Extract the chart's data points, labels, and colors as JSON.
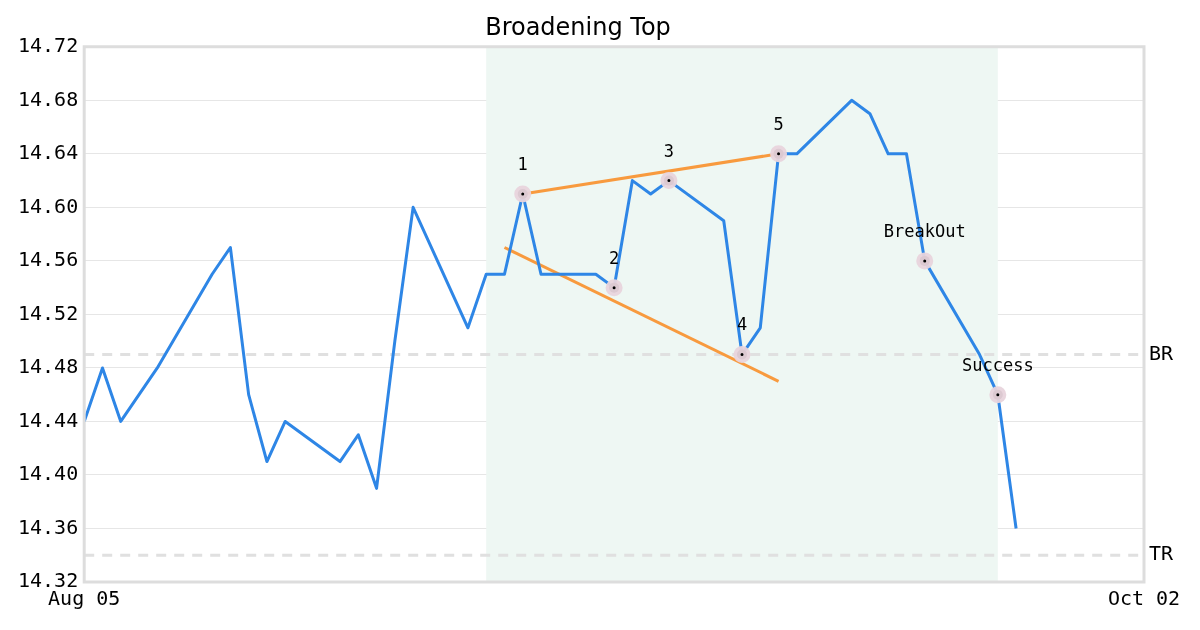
{
  "chart_data": {
    "type": "line",
    "title": "Broadening Top",
    "x": [
      "--08-05",
      "--08-06",
      "--08-07",
      "--08-08",
      "--08-09",
      "--08-12",
      "--08-13",
      "--08-14",
      "--08-15",
      "--08-16",
      "--08-19",
      "--08-20",
      "--08-21",
      "--08-22",
      "--08-23",
      "--08-26",
      "--08-27",
      "--08-28",
      "--08-29",
      "--08-30",
      "--09-02",
      "--09-03",
      "--09-04",
      "--09-05",
      "--09-06",
      "--09-09",
      "--09-10",
      "--09-11",
      "--09-12",
      "--09-13",
      "--09-16",
      "--09-17",
      "--09-18",
      "--09-19",
      "--09-20",
      "--09-23",
      "--09-24",
      "--09-25"
    ],
    "series": [
      {
        "color": "#2e86e6",
        "values": [
          14.44,
          14.48,
          14.44,
          14.46,
          14.48,
          14.55,
          14.57,
          14.46,
          14.41,
          14.44,
          14.41,
          14.43,
          14.39,
          14.5,
          14.6,
          14.51,
          14.55,
          14.55,
          14.61,
          14.55,
          14.55,
          14.54,
          14.62,
          14.61,
          14.62,
          14.59,
          14.49,
          14.51,
          14.64,
          14.64,
          14.68,
          14.67,
          14.64,
          14.64,
          14.56,
          14.49,
          14.46,
          14.36
        ]
      },
      {
        "type": "line",
        "color": "#f89a3e",
        "x": [
          "--08-29",
          "--09-12"
        ],
        "values": [
          14.61,
          14.64
        ]
      },
      {
        "type": "line",
        "color": "#f89a3e",
        "x": [
          "--08-28",
          "--09-12"
        ],
        "values": [
          14.57,
          14.47
        ]
      },
      {
        "type": "scatter",
        "color": "#000000",
        "marker": "circle",
        "x": [
          "--08-29",
          "--09-03",
          "--09-06",
          "--09-10",
          "--09-12",
          "--09-20",
          "--09-24"
        ],
        "values": [
          14.61,
          14.54,
          14.62,
          14.49,
          14.64,
          14.56,
          14.46
        ]
      }
    ],
    "annotations": [
      {
        "text": "1",
        "x": "--08-29",
        "y": 14.61
      },
      {
        "text": "2",
        "x": "--09-03",
        "y": 14.54
      },
      {
        "text": "3",
        "x": "--09-06",
        "y": 14.62
      },
      {
        "text": "4",
        "x": "--09-10",
        "y": 14.49
      },
      {
        "text": "5",
        "x": "--09-12",
        "y": 14.64
      },
      {
        "text": "BreakOut",
        "x": "--09-20",
        "y": 14.56
      },
      {
        "text": "Success",
        "x": "--09-24",
        "y": 14.46
      }
    ],
    "xlim": [
      "--08-05",
      "--10-02"
    ],
    "xticks": [
      {
        "value": "--08-05",
        "label": "Aug 05"
      },
      {
        "value": "--10-02",
        "label": "Oct 02"
      }
    ],
    "ylim": [
      14.32,
      14.72
    ],
    "yticks": [
      14.32,
      14.36,
      {
        "value": 14.4,
        "label": "14.40"
      },
      14.44,
      14.48,
      14.52,
      14.56,
      {
        "value": 14.6,
        "label": "14.60"
      },
      14.64,
      14.68,
      14.72
    ],
    "ref_lines": [
      {
        "axis": "y",
        "value": 14.49,
        "label": "BR",
        "color": "#e0e0e0",
        "line_style": "dashed"
      },
      {
        "axis": "y",
        "value": 14.34,
        "label": "TR",
        "color": "#e0e0e0",
        "line_style": "dashed"
      }
    ],
    "bands": [
      {
        "axis": "x",
        "from": "--08-27",
        "to": "--09-24",
        "color": "#eef7f3"
      }
    ],
    "grid": "y",
    "legend": false,
    "marker": "none",
    "line_style": "solid"
  }
}
